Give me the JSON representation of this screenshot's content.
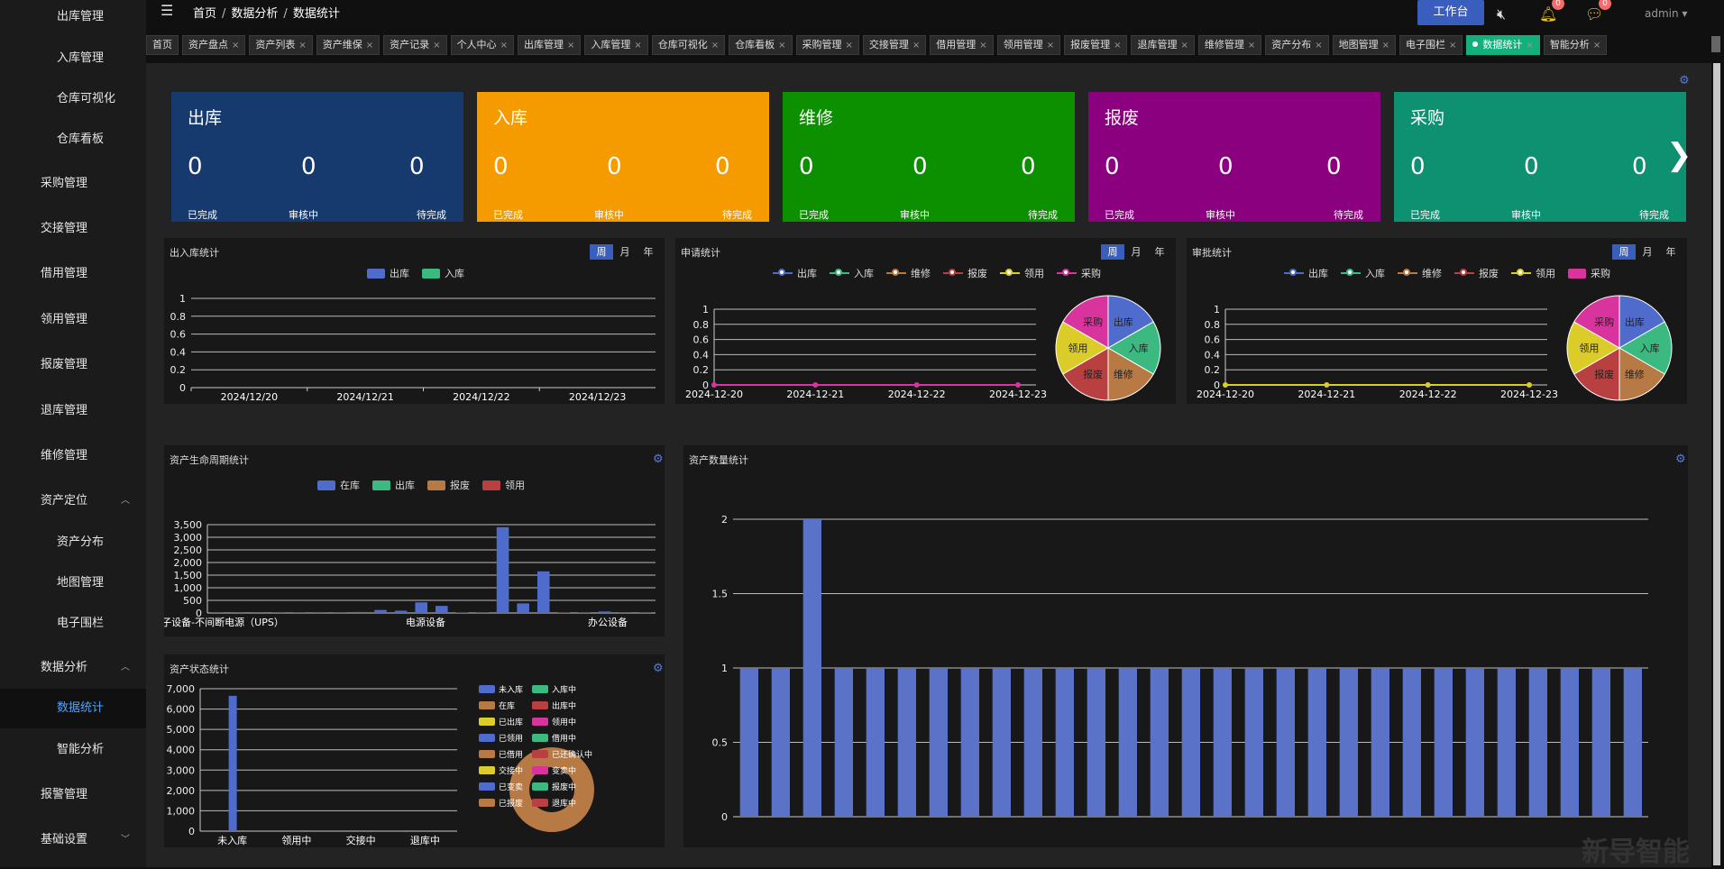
{
  "sidebar": {
    "items": [
      {
        "label": "出库管理",
        "sub": true
      },
      {
        "label": "入库管理",
        "sub": true
      },
      {
        "label": "仓库可视化",
        "sub": true
      },
      {
        "label": "仓库看板",
        "sub": true
      },
      {
        "label": "采购管理",
        "sub": false
      },
      {
        "label": "交接管理",
        "sub": false
      },
      {
        "label": "借用管理",
        "sub": false
      },
      {
        "label": "领用管理",
        "sub": false
      },
      {
        "label": "报废管理",
        "sub": false
      },
      {
        "label": "退库管理",
        "sub": false
      },
      {
        "label": "维修管理",
        "sub": false
      },
      {
        "label": "资产定位",
        "sub": false,
        "expanded": true
      },
      {
        "label": "资产分布",
        "sub": true
      },
      {
        "label": "地图管理",
        "sub": true
      },
      {
        "label": "电子围栏",
        "sub": true
      },
      {
        "label": "数据分析",
        "sub": false,
        "expanded": true
      },
      {
        "label": "数据统计",
        "sub": true,
        "active": true
      },
      {
        "label": "智能分析",
        "sub": true
      },
      {
        "label": "报警管理",
        "sub": false
      },
      {
        "label": "基础设置",
        "sub": false,
        "collapsed": true
      }
    ]
  },
  "header": {
    "breadcrumb": [
      "首页",
      "数据分析",
      "数据统计"
    ],
    "workbench_label": "工作台",
    "bell_badge": "0",
    "chat_badge": "0",
    "user": "admin"
  },
  "tabs": [
    "首页",
    "资产盘点",
    "资产列表",
    "资产维保",
    "资产记录",
    "个人中心",
    "出库管理",
    "入库管理",
    "仓库可视化",
    "仓库看板",
    "采购管理",
    "交接管理",
    "借用管理",
    "领用管理",
    "报废管理",
    "退库管理",
    "维修管理",
    "资产分布",
    "地图管理",
    "电子围栏",
    "数据统计",
    "智能分析"
  ],
  "active_tab": "数据统计",
  "cards": [
    {
      "title": "出库",
      "color": "#163a6e",
      "values": [
        "0",
        "0",
        "0"
      ],
      "labels": [
        "已完成",
        "审核中",
        "待完成"
      ]
    },
    {
      "title": "入库",
      "color": "#f59b00",
      "values": [
        "0",
        "0",
        "0"
      ],
      "labels": [
        "已完成",
        "审核中",
        "待完成"
      ]
    },
    {
      "title": "维修",
      "color": "#0d9000",
      "values": [
        "0",
        "0",
        "0"
      ],
      "labels": [
        "已完成",
        "审核中",
        "待完成"
      ]
    },
    {
      "title": "报废",
      "color": "#8b007e",
      "values": [
        "0",
        "0",
        "0"
      ],
      "labels": [
        "已完成",
        "审核中",
        "待完成"
      ]
    },
    {
      "title": "采购",
      "color": "#0d9170",
      "values": [
        "0",
        "0",
        "0"
      ],
      "labels": [
        "已完成",
        "审核中",
        "待完成"
      ]
    }
  ],
  "period_options": [
    "周",
    "月",
    "年"
  ],
  "panels": {
    "inout": {
      "title": "出入库统计"
    },
    "apply": {
      "title": "申请统计"
    },
    "approve": {
      "title": "审批统计"
    },
    "lifecycle": {
      "title": "资产生命周期统计"
    },
    "quantity": {
      "title": "资产数量统计"
    },
    "status": {
      "title": "资产状态统计"
    }
  },
  "colors": {
    "blue": "#4f6bcc",
    "green": "#3bb980",
    "brown": "#b87a45",
    "red": "#b94040",
    "yellow": "#dccc2a",
    "pink": "#d9349e"
  },
  "chart_data": [
    {
      "id": "inout",
      "type": "line",
      "title": "出入库统计",
      "categories": [
        "2024/12/20",
        "2024/12/21",
        "2024/12/22",
        "2024/12/23"
      ],
      "series": [
        {
          "name": "出库",
          "values": [
            0,
            0,
            0,
            0
          ]
        },
        {
          "name": "入库",
          "values": [
            0,
            0,
            0,
            0
          ]
        }
      ],
      "ylim": [
        0,
        1
      ],
      "yticks": [
        "0",
        "0.2",
        "0.4",
        "0.6",
        "0.8",
        "1"
      ]
    },
    {
      "id": "apply",
      "type": "line",
      "title": "申请统计",
      "categories": [
        "2024-12-20",
        "2024-12-21",
        "2024-12-22",
        "2024-12-23"
      ],
      "series": [
        {
          "name": "出库",
          "values": [
            0,
            0,
            0,
            0
          ]
        },
        {
          "name": "入库",
          "values": [
            0,
            0,
            0,
            0
          ]
        },
        {
          "name": "维修",
          "values": [
            0,
            0,
            0,
            0
          ]
        },
        {
          "name": "报废",
          "values": [
            0,
            0,
            0,
            0
          ]
        },
        {
          "name": "领用",
          "values": [
            0,
            0,
            0,
            0
          ]
        },
        {
          "name": "采购",
          "values": [
            0,
            0,
            0,
            0
          ]
        }
      ],
      "ylim": [
        0,
        1
      ],
      "yticks": [
        "0",
        "0.2",
        "0.4",
        "0.6",
        "0.8",
        "1"
      ],
      "pie": {
        "labels": [
          "出库",
          "入库",
          "维修",
          "报废",
          "领用",
          "采购"
        ],
        "values": [
          1,
          1,
          1,
          1,
          1,
          1
        ]
      }
    },
    {
      "id": "approve",
      "type": "line",
      "title": "审批统计",
      "categories": [
        "2024-12-20",
        "2024-12-21",
        "2024-12-22",
        "2024-12-23"
      ],
      "series": [
        {
          "name": "出库",
          "values": [
            0,
            0,
            0,
            0
          ]
        },
        {
          "name": "入库",
          "values": [
            0,
            0,
            0,
            0
          ]
        },
        {
          "name": "维修",
          "values": [
            0,
            0,
            0,
            0
          ]
        },
        {
          "name": "报废",
          "values": [
            0,
            0,
            0,
            0
          ]
        },
        {
          "name": "领用",
          "values": [
            0,
            0,
            0,
            0
          ]
        },
        {
          "name": "采购",
          "values": [
            0,
            0,
            0,
            0
          ]
        }
      ],
      "ylim": [
        0,
        1
      ],
      "yticks": [
        "0",
        "0.2",
        "0.4",
        "0.6",
        "0.8",
        "1"
      ],
      "pie": {
        "labels": [
          "出库",
          "入库",
          "维修",
          "报废",
          "领用",
          "采购"
        ],
        "values": [
          1,
          1,
          1,
          1,
          1,
          1
        ]
      }
    },
    {
      "id": "lifecycle",
      "type": "bar",
      "title": "资产生命周期统计",
      "legend": [
        "在库",
        "出库",
        "报废",
        "领用"
      ],
      "category_labels": [
        "子设备-不间断电源（UPS）",
        "电源设备",
        "办公设备"
      ],
      "values": [
        5,
        4,
        3,
        6,
        8,
        5,
        30,
        40,
        120,
        90,
        420,
        280,
        20,
        10,
        3400,
        380,
        1650,
        15,
        25,
        60,
        30,
        10
      ],
      "ylim": [
        0,
        3500
      ],
      "yticks": [
        "0",
        "500",
        "1,000",
        "1,500",
        "2,000",
        "2,500",
        "3,000",
        "3,500"
      ]
    },
    {
      "id": "quantity",
      "type": "bar",
      "title": "资产数量统计",
      "values": [
        1,
        1,
        2,
        1,
        1,
        1,
        1,
        1,
        1,
        1,
        1,
        1,
        1,
        1,
        1,
        1,
        1,
        1,
        1,
        1,
        1,
        1,
        1,
        1,
        1,
        1,
        1,
        1,
        1
      ],
      "ylim": [
        0,
        2
      ],
      "yticks": [
        "0",
        "0.5",
        "1",
        "1.5",
        "2"
      ]
    },
    {
      "id": "status",
      "type": "bar",
      "title": "资产状态统计",
      "categories": [
        "未入库",
        "领用中",
        "交接中",
        "退库中"
      ],
      "values": [
        6650,
        0,
        0,
        0
      ],
      "ylim": [
        0,
        7000
      ],
      "yticks": [
        "0",
        "1,000",
        "2,000",
        "3,000",
        "4,000",
        "5,000",
        "6,000",
        "7,000"
      ],
      "legend": [
        "未入库",
        "入库中",
        "在库",
        "出库中",
        "已出库",
        "领用中",
        "已领用",
        "借用中",
        "已借用",
        "已还确认中",
        "交接中",
        "变卖中",
        "已变卖",
        "报废中",
        "已报废",
        "退库中"
      ]
    }
  ]
}
